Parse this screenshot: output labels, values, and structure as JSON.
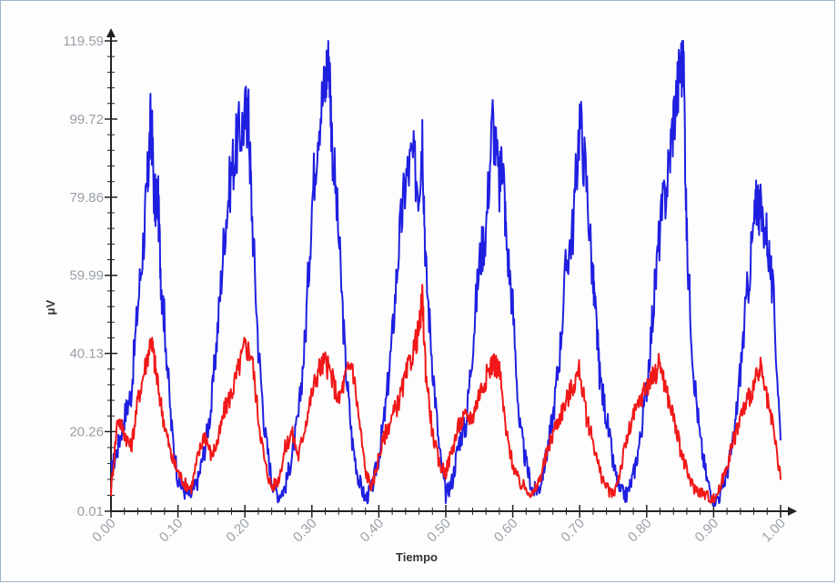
{
  "chart_data": {
    "type": "line",
    "xlabel": "Tiempo",
    "ylabel": "μV",
    "xlim": [
      0.0,
      1.0
    ],
    "ylim": [
      0.01,
      119.59
    ],
    "x_ticks": [
      "0.00",
      "0.10",
      "0.20",
      "0.30",
      "0.40",
      "0.50",
      "0.60",
      "0.70",
      "0.80",
      "0.90",
      "1.00"
    ],
    "y_ticks": [
      "0.01",
      "20.26",
      "40.13",
      "59.99",
      "79.86",
      "99.72",
      "119.59"
    ],
    "grid": false,
    "legend": "none",
    "series": [
      {
        "color": "#1f1fe0",
        "x": [
          0.0,
          0.01,
          0.02,
          0.03,
          0.04,
          0.05,
          0.055,
          0.06,
          0.065,
          0.07,
          0.075,
          0.08,
          0.09,
          0.1,
          0.11,
          0.12,
          0.13,
          0.14,
          0.15,
          0.16,
          0.17,
          0.18,
          0.19,
          0.2,
          0.205,
          0.21,
          0.22,
          0.23,
          0.24,
          0.25,
          0.26,
          0.27,
          0.28,
          0.29,
          0.3,
          0.31,
          0.32,
          0.325,
          0.33,
          0.34,
          0.35,
          0.36,
          0.37,
          0.38,
          0.39,
          0.4,
          0.41,
          0.42,
          0.43,
          0.44,
          0.45,
          0.46,
          0.465,
          0.47,
          0.48,
          0.49,
          0.5,
          0.51,
          0.52,
          0.53,
          0.54,
          0.55,
          0.56,
          0.57,
          0.58,
          0.585,
          0.59,
          0.6,
          0.61,
          0.62,
          0.63,
          0.64,
          0.65,
          0.66,
          0.67,
          0.68,
          0.69,
          0.7,
          0.71,
          0.72,
          0.725,
          0.73,
          0.74,
          0.75,
          0.76,
          0.77,
          0.78,
          0.79,
          0.8,
          0.81,
          0.82,
          0.83,
          0.84,
          0.85,
          0.855,
          0.86,
          0.87,
          0.88,
          0.89,
          0.9,
          0.91,
          0.92,
          0.93,
          0.94,
          0.95,
          0.96,
          0.965,
          0.97,
          0.98,
          0.99,
          1.0
        ],
        "y": [
          10,
          16,
          24,
          30,
          52,
          72,
          85,
          101,
          78,
          80,
          58,
          48,
          22,
          8,
          5,
          4,
          8,
          16,
          27,
          48,
          72,
          87,
          95,
          100,
          102,
          78,
          42,
          20,
          8,
          4,
          6,
          14,
          24,
          44,
          78,
          100,
          108,
          119,
          95,
          70,
          38,
          18,
          8,
          3,
          6,
          14,
          26,
          44,
          68,
          84,
          90,
          82,
          97,
          62,
          38,
          16,
          4,
          8,
          18,
          22,
          42,
          63,
          72,
          100,
          82,
          91,
          70,
          52,
          22,
          12,
          5,
          6,
          14,
          24,
          40,
          63,
          72,
          100,
          84,
          58,
          47,
          34,
          24,
          12,
          5,
          4,
          9,
          18,
          32,
          52,
          72,
          83,
          100,
          112,
          116,
          68,
          36,
          18,
          8,
          3,
          4,
          10,
          18,
          36,
          55,
          72,
          80,
          76,
          70,
          52,
          18
        ]
      },
      {
        "color": "#f01818",
        "x": [
          0.0,
          0.01,
          0.02,
          0.03,
          0.04,
          0.05,
          0.06,
          0.065,
          0.07,
          0.08,
          0.09,
          0.1,
          0.11,
          0.12,
          0.13,
          0.14,
          0.15,
          0.16,
          0.17,
          0.18,
          0.19,
          0.2,
          0.21,
          0.22,
          0.23,
          0.24,
          0.25,
          0.26,
          0.27,
          0.28,
          0.29,
          0.3,
          0.31,
          0.32,
          0.33,
          0.34,
          0.35,
          0.36,
          0.37,
          0.38,
          0.39,
          0.4,
          0.41,
          0.42,
          0.43,
          0.44,
          0.45,
          0.46,
          0.465,
          0.47,
          0.48,
          0.49,
          0.5,
          0.51,
          0.52,
          0.53,
          0.54,
          0.55,
          0.56,
          0.57,
          0.58,
          0.59,
          0.6,
          0.61,
          0.62,
          0.63,
          0.64,
          0.65,
          0.66,
          0.67,
          0.68,
          0.69,
          0.7,
          0.71,
          0.72,
          0.73,
          0.74,
          0.75,
          0.76,
          0.77,
          0.78,
          0.79,
          0.8,
          0.81,
          0.82,
          0.83,
          0.84,
          0.85,
          0.86,
          0.87,
          0.88,
          0.89,
          0.9,
          0.91,
          0.92,
          0.93,
          0.94,
          0.95,
          0.96,
          0.97,
          0.98,
          0.99,
          1.0
        ],
        "y": [
          5,
          24,
          20,
          16,
          28,
          36,
          44,
          38,
          32,
          22,
          14,
          10,
          7,
          6,
          14,
          20,
          14,
          18,
          26,
          30,
          36,
          42,
          40,
          24,
          12,
          6,
          8,
          16,
          20,
          14,
          22,
          30,
          36,
          38,
          34,
          28,
          34,
          38,
          24,
          10,
          6,
          14,
          20,
          24,
          28,
          34,
          40,
          46,
          54,
          36,
          20,
          12,
          10,
          16,
          22,
          24,
          24,
          30,
          34,
          38,
          36,
          20,
          12,
          7,
          6,
          4,
          8,
          14,
          20,
          24,
          28,
          32,
          36,
          24,
          18,
          10,
          6,
          4,
          10,
          18,
          24,
          28,
          32,
          34,
          38,
          30,
          24,
          16,
          10,
          6,
          5,
          4,
          3,
          6,
          12,
          18,
          24,
          28,
          32,
          36,
          28,
          20,
          8
        ]
      }
    ]
  }
}
